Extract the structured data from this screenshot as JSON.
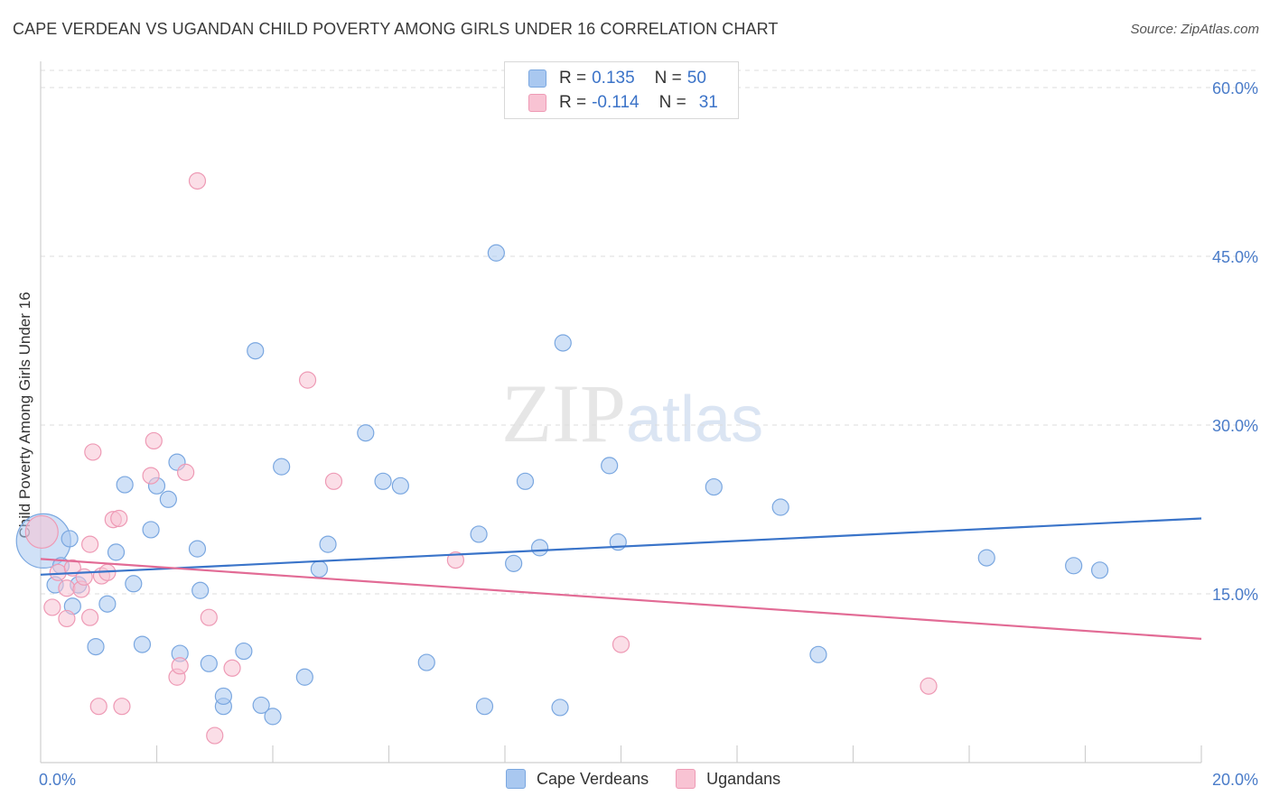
{
  "title": "CAPE VERDEAN VS UGANDAN CHILD POVERTY AMONG GIRLS UNDER 16 CORRELATION CHART",
  "source": "Source: ZipAtlas.com",
  "watermark": {
    "zip": "ZIP",
    "atlas": "atlas"
  },
  "legend": {
    "rows": [
      {
        "r_label": "R =",
        "r_value": "0.135",
        "n_label": "N =",
        "n_value": "50",
        "color": "#a9c8f0",
        "border": "#7aa7e0"
      },
      {
        "r_label": "R =",
        "r_value": "-0.114",
        "n_label": "N =",
        "n_value": "31",
        "color": "#f8c3d3",
        "border": "#ee9ab5"
      }
    ]
  },
  "bottom_legend": [
    "Cape Verdeans",
    "Ugandans"
  ],
  "chart_data": {
    "type": "scatter",
    "title": "CAPE VERDEAN VS UGANDAN CHILD POVERTY AMONG GIRLS UNDER 16 CORRELATION CHART",
    "xlabel": "",
    "ylabel": "Child Poverty Among Girls Under 16",
    "xlim": [
      0,
      20
    ],
    "ylim": [
      0,
      60
    ],
    "x_tick_labels": [
      "0.0%",
      "20.0%"
    ],
    "y_ticks": [
      15,
      30,
      45,
      60
    ],
    "y_tick_labels": [
      "15.0%",
      "30.0%",
      "45.0%",
      "60.0%"
    ],
    "grid": true,
    "series": [
      {
        "name": "Cape Verdeans",
        "color": "#a9c8f0",
        "stroke": "#7aa7e0",
        "line_color": "#3a74c9",
        "trend": [
          [
            0,
            16.7
          ],
          [
            20,
            21.7
          ]
        ],
        "points": [
          [
            0.05,
            19.7,
            30
          ],
          [
            0.25,
            15.8,
            9
          ],
          [
            0.35,
            17.5,
            9
          ],
          [
            0.5,
            19.9,
            9
          ],
          [
            0.55,
            13.9,
            9
          ],
          [
            0.65,
            15.8,
            9
          ],
          [
            0.95,
            10.3,
            9
          ],
          [
            1.15,
            14.1,
            9
          ],
          [
            1.3,
            18.7,
            9
          ],
          [
            1.45,
            24.7,
            9
          ],
          [
            1.6,
            15.9,
            9
          ],
          [
            1.75,
            10.5,
            9
          ],
          [
            1.9,
            20.7,
            9
          ],
          [
            2.0,
            24.6,
            9
          ],
          [
            2.2,
            23.4,
            9
          ],
          [
            2.35,
            26.7,
            9
          ],
          [
            2.4,
            9.7,
            9
          ],
          [
            2.7,
            19.0,
            9
          ],
          [
            2.75,
            15.3,
            9
          ],
          [
            2.9,
            8.8,
            9
          ],
          [
            3.15,
            5.0,
            9
          ],
          [
            3.15,
            5.9,
            9
          ],
          [
            3.5,
            9.9,
            9
          ],
          [
            3.7,
            36.6,
            9
          ],
          [
            3.8,
            5.1,
            9
          ],
          [
            4.0,
            4.1,
            9
          ],
          [
            4.15,
            26.3,
            9
          ],
          [
            4.55,
            7.6,
            9
          ],
          [
            4.8,
            17.2,
            9
          ],
          [
            4.95,
            19.4,
            9
          ],
          [
            5.6,
            29.3,
            9
          ],
          [
            5.9,
            25.0,
            9
          ],
          [
            6.2,
            24.6,
            9
          ],
          [
            6.65,
            8.9,
            9
          ],
          [
            7.55,
            20.3,
            9
          ],
          [
            7.65,
            5.0,
            9
          ],
          [
            7.85,
            45.3,
            9
          ],
          [
            8.15,
            17.7,
            9
          ],
          [
            8.35,
            25.0,
            9
          ],
          [
            8.6,
            19.1,
            9
          ],
          [
            8.95,
            4.9,
            9
          ],
          [
            9.0,
            37.3,
            9
          ],
          [
            9.8,
            26.4,
            9
          ],
          [
            9.95,
            19.6,
            9
          ],
          [
            11.6,
            24.5,
            9
          ],
          [
            12.75,
            22.7,
            9
          ],
          [
            13.4,
            9.6,
            9
          ],
          [
            16.3,
            18.2,
            9
          ],
          [
            17.8,
            17.5,
            9
          ],
          [
            18.25,
            17.1,
            9
          ]
        ]
      },
      {
        "name": "Ugandans",
        "color": "#f8c3d3",
        "stroke": "#ee9ab5",
        "line_color": "#e26b95",
        "trend": [
          [
            0,
            18.1
          ],
          [
            20,
            11.0
          ]
        ],
        "points": [
          [
            0.02,
            20.5,
            18
          ],
          [
            0.2,
            13.8,
            9
          ],
          [
            0.3,
            16.9,
            9
          ],
          [
            0.45,
            15.5,
            9
          ],
          [
            0.45,
            12.8,
            9
          ],
          [
            0.55,
            17.3,
            9
          ],
          [
            0.7,
            15.4,
            9
          ],
          [
            0.75,
            16.5,
            9
          ],
          [
            0.85,
            19.4,
            9
          ],
          [
            0.85,
            12.9,
            9
          ],
          [
            0.9,
            27.6,
            9
          ],
          [
            1.0,
            5.0,
            9
          ],
          [
            1.05,
            16.6,
            9
          ],
          [
            1.15,
            16.9,
            9
          ],
          [
            1.25,
            21.6,
            9
          ],
          [
            1.35,
            21.7,
            9
          ],
          [
            1.4,
            5.0,
            9
          ],
          [
            1.9,
            25.5,
            9
          ],
          [
            1.95,
            28.6,
            9
          ],
          [
            2.35,
            7.6,
            9
          ],
          [
            2.4,
            8.6,
            9
          ],
          [
            2.5,
            25.8,
            9
          ],
          [
            2.7,
            51.7,
            9
          ],
          [
            2.9,
            12.9,
            9
          ],
          [
            3.0,
            2.4,
            9
          ],
          [
            3.3,
            8.4,
            9
          ],
          [
            4.6,
            34.0,
            9
          ],
          [
            5.05,
            25.0,
            9
          ],
          [
            7.15,
            18.0,
            9
          ],
          [
            10.0,
            10.5,
            9
          ],
          [
            15.3,
            6.8,
            9
          ]
        ]
      }
    ]
  }
}
